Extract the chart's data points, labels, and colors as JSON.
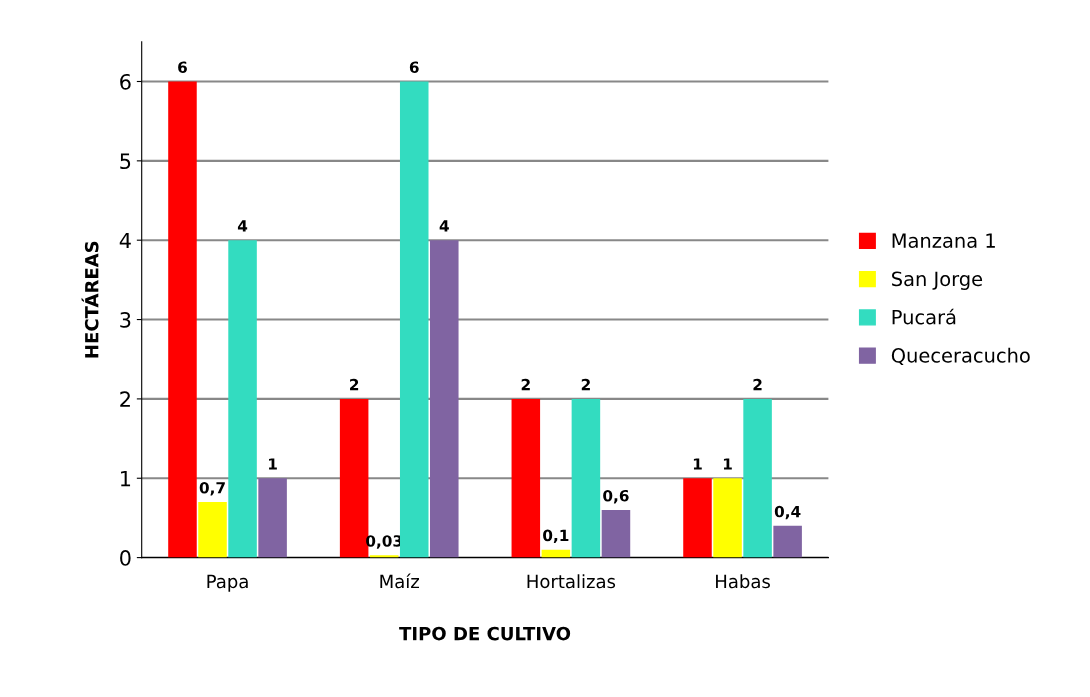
{
  "chart_data": {
    "type": "bar",
    "categories": [
      "Papa",
      "Maíz",
      "Hortalizas",
      "Habas"
    ],
    "xlabel": "TIPO DE CULTIVO",
    "ylabel": "HECTÁREAS",
    "ylim": [
      0,
      6.5
    ],
    "yticks": [
      0,
      1,
      2,
      3,
      4,
      5,
      6
    ],
    "grid": "y",
    "legend": "right",
    "series": [
      {
        "name": "Manzana 1",
        "color": "#ff0000",
        "values": [
          6,
          2,
          2,
          1
        ],
        "value_labels": [
          "6",
          "2",
          "2",
          "1"
        ]
      },
      {
        "name": "San Jorge",
        "color": "#ffff00",
        "values": [
          0.7,
          0.03,
          0.1,
          1
        ],
        "value_labels": [
          "0,7",
          "0,03",
          "0,1",
          "1"
        ]
      },
      {
        "name": "Pucará",
        "color": "#33dcc0",
        "values": [
          4,
          6,
          2,
          2
        ],
        "value_labels": [
          "4",
          "6",
          "2",
          "2"
        ]
      },
      {
        "name": "Queceracucho",
        "color": "#8064a2",
        "values": [
          1,
          4,
          0.6,
          0.4
        ],
        "value_labels": [
          "1",
          "4",
          "0,6",
          "0,4"
        ]
      }
    ]
  }
}
